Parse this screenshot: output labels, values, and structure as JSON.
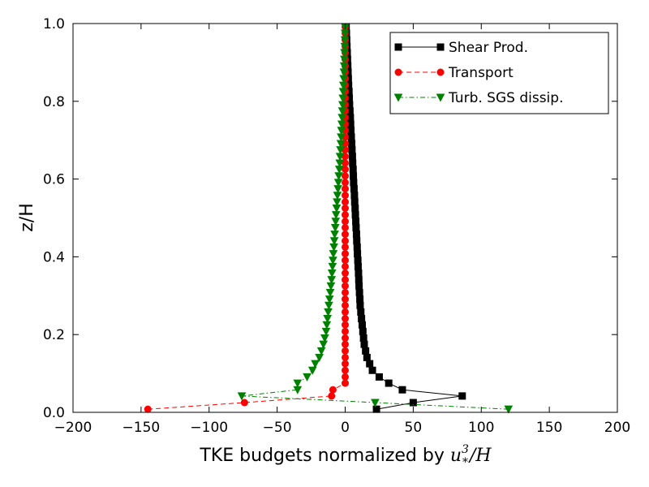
{
  "chart_data": {
    "type": "line",
    "xlabel_prefix": "TKE budgets normalized by ",
    "xlabel_math": {
      "base": "u",
      "sub": "*",
      "sup": "3",
      "tail": "/H"
    },
    "ylabel": "z/H",
    "xlim": [
      -200,
      200
    ],
    "ylim": [
      0.0,
      1.0
    ],
    "xticks": [
      -200,
      -150,
      -100,
      -50,
      0,
      50,
      100,
      150,
      200
    ],
    "xtick_labels": [
      "−200",
      "−150",
      "−100",
      "−50",
      "0",
      "50",
      "100",
      "150",
      "200"
    ],
    "yticks": [
      0.0,
      0.2,
      0.4,
      0.6,
      0.8,
      1.0
    ],
    "ytick_labels": [
      "0.0",
      "0.2",
      "0.4",
      "0.6",
      "0.8",
      "1.0"
    ],
    "grid": false,
    "legend_position": "top-right",
    "series": [
      {
        "name": "Shear Prod.",
        "color": "#000000",
        "marker": "square",
        "linestyle": "solid",
        "x": [
          23,
          50,
          86,
          42,
          32,
          25,
          20,
          18,
          16,
          15,
          14,
          13.5,
          13,
          12.5,
          12,
          11.5,
          11,
          10.8,
          10.5,
          10.2,
          10,
          9.8,
          9.5,
          9.3,
          9,
          8.8,
          8.5,
          8.3,
          8,
          7.8,
          7.5,
          7.3,
          7,
          6.8,
          6.5,
          6.2,
          6,
          5.8,
          5.5,
          5.3,
          5,
          4.8,
          4.5,
          4.2,
          4,
          3.8,
          3.5,
          3.2,
          3,
          2.8,
          2.5,
          2.3,
          2.1,
          1.9,
          1.7,
          1.5,
          1.3,
          1.1,
          0.9,
          0.7
        ],
        "y": [
          0.008,
          0.025,
          0.042,
          0.058,
          0.075,
          0.091,
          0.108,
          0.125,
          0.141,
          0.158,
          0.175,
          0.191,
          0.208,
          0.225,
          0.241,
          0.258,
          0.275,
          0.291,
          0.308,
          0.325,
          0.341,
          0.358,
          0.375,
          0.391,
          0.408,
          0.425,
          0.441,
          0.458,
          0.475,
          0.491,
          0.508,
          0.525,
          0.541,
          0.558,
          0.575,
          0.591,
          0.608,
          0.625,
          0.641,
          0.658,
          0.675,
          0.691,
          0.708,
          0.725,
          0.741,
          0.758,
          0.775,
          0.791,
          0.808,
          0.825,
          0.841,
          0.858,
          0.875,
          0.891,
          0.908,
          0.925,
          0.941,
          0.958,
          0.975,
          0.991
        ]
      },
      {
        "name": "Transport",
        "color": "#ff0000",
        "marker": "circle",
        "linestyle": "dashed",
        "x": [
          -145,
          -74,
          -10,
          -9,
          0,
          0,
          0,
          0,
          0,
          0,
          0,
          0,
          0,
          0,
          0,
          0,
          0,
          0,
          0,
          0,
          0,
          0,
          0,
          0,
          0,
          0,
          0,
          0,
          0,
          0,
          0,
          0,
          0,
          0,
          0,
          0,
          0,
          0,
          0,
          0,
          0,
          0,
          0,
          0,
          0,
          0,
          0,
          0,
          0,
          0,
          0,
          0,
          0,
          0,
          0,
          0,
          0,
          0,
          0,
          0
        ],
        "y": [
          0.008,
          0.025,
          0.042,
          0.058,
          0.075,
          0.091,
          0.108,
          0.125,
          0.141,
          0.158,
          0.175,
          0.191,
          0.208,
          0.225,
          0.241,
          0.258,
          0.275,
          0.291,
          0.308,
          0.325,
          0.341,
          0.358,
          0.375,
          0.391,
          0.408,
          0.425,
          0.441,
          0.458,
          0.475,
          0.491,
          0.508,
          0.525,
          0.541,
          0.558,
          0.575,
          0.591,
          0.608,
          0.625,
          0.641,
          0.658,
          0.675,
          0.691,
          0.708,
          0.725,
          0.741,
          0.758,
          0.775,
          0.791,
          0.808,
          0.825,
          0.841,
          0.858,
          0.875,
          0.891,
          0.908,
          0.925,
          0.941,
          0.958,
          0.975,
          0.991
        ]
      },
      {
        "name": "Turb. SGS dissip.",
        "color": "#008000",
        "marker": "triangle-down",
        "linestyle": "dashdot",
        "x": [
          120,
          22,
          -76,
          -35,
          -35,
          -28,
          -24,
          -22,
          -19,
          -17.5,
          -16,
          -15,
          -14,
          -13.5,
          -13,
          -12.5,
          -12,
          -11.5,
          -11,
          -10.5,
          -10,
          -9.7,
          -9.3,
          -9,
          -8.7,
          -8.3,
          -8,
          -7.7,
          -7.3,
          -7,
          -6.7,
          -6.3,
          -6,
          -5.7,
          -5.3,
          -5,
          -4.7,
          -4.3,
          -4,
          -3.8,
          -3.5,
          -3.2,
          -3,
          -2.8,
          -2.5,
          -2.3,
          -2.1,
          -1.9,
          -1.7,
          -1.5,
          -1.3,
          -1.1,
          -0.9,
          -0.8,
          -0.6,
          -0.5,
          -0.3,
          -0.2,
          -0.1,
          0
        ],
        "y": [
          0.008,
          0.025,
          0.042,
          0.058,
          0.075,
          0.091,
          0.108,
          0.125,
          0.141,
          0.158,
          0.175,
          0.191,
          0.208,
          0.225,
          0.241,
          0.258,
          0.275,
          0.291,
          0.308,
          0.325,
          0.341,
          0.358,
          0.375,
          0.391,
          0.408,
          0.425,
          0.441,
          0.458,
          0.475,
          0.491,
          0.508,
          0.525,
          0.541,
          0.558,
          0.575,
          0.591,
          0.608,
          0.625,
          0.641,
          0.658,
          0.675,
          0.691,
          0.708,
          0.725,
          0.741,
          0.758,
          0.775,
          0.791,
          0.808,
          0.825,
          0.841,
          0.858,
          0.875,
          0.891,
          0.908,
          0.925,
          0.941,
          0.958,
          0.975,
          0.991
        ]
      }
    ]
  }
}
